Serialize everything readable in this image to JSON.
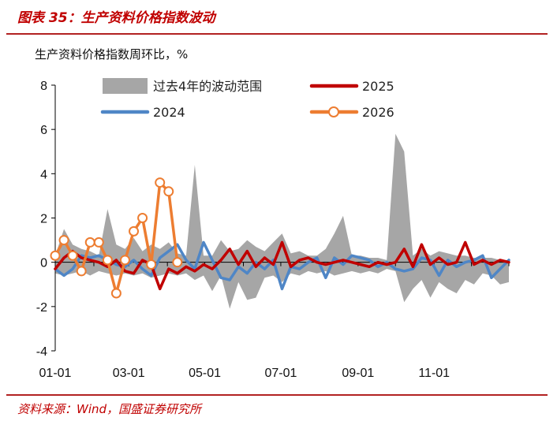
{
  "header": {
    "figure_title": "图表 35：生产资料价格指数波动",
    "subtitle": "生产资料价格指数周环比，%",
    "source": "资料来源：Wind，国盛证券研究所"
  },
  "colors": {
    "range": "#a6a6a6",
    "s2025": "#c00000",
    "s2024": "#4f86c6",
    "s2026": "#ed7d31",
    "accent": "#b22222"
  },
  "chart_data": {
    "type": "line",
    "xlabel": "",
    "ylabel": "",
    "ylim": [
      -4,
      8
    ],
    "y_ticks": [
      -4,
      -2,
      0,
      2,
      4,
      6,
      8
    ],
    "xlim": [
      "01-01",
      "12-31"
    ],
    "x_ticks": [
      "01-01",
      "03-01",
      "05-01",
      "07-01",
      "09-01",
      "11-01"
    ],
    "legend_position": "top",
    "band": {
      "name": "过去4年的波动范围",
      "x": [
        "01-01",
        "01-08",
        "01-15",
        "01-22",
        "01-29",
        "02-05",
        "02-12",
        "02-19",
        "02-26",
        "03-05",
        "03-12",
        "03-19",
        "03-26",
        "04-02",
        "04-09",
        "04-16",
        "04-23",
        "04-30",
        "05-07",
        "05-14",
        "05-21",
        "05-28",
        "06-04",
        "06-11",
        "06-18",
        "06-25",
        "07-02",
        "07-09",
        "07-16",
        "07-23",
        "07-30",
        "08-06",
        "08-13",
        "08-20",
        "08-27",
        "09-03",
        "09-10",
        "09-17",
        "09-24",
        "10-01",
        "10-08",
        "10-15",
        "10-22",
        "10-29",
        "11-05",
        "11-12",
        "11-19",
        "11-26",
        "12-03",
        "12-10",
        "12-17",
        "12-24",
        "12-31"
      ],
      "upper": [
        0.3,
        1.5,
        0.8,
        0.6,
        0.5,
        0.3,
        2.4,
        0.8,
        0.6,
        1.1,
        0.5,
        0.8,
        0.6,
        0.9,
        0.4,
        0.3,
        4.4,
        0.3,
        0.3,
        1.0,
        0.5,
        0.6,
        1.0,
        0.7,
        0.5,
        0.9,
        1.3,
        0.4,
        0.5,
        0.3,
        0.3,
        0.6,
        1.3,
        2.1,
        0.3,
        0.3,
        0.2,
        0.2,
        0.1,
        5.8,
        5.0,
        0.3,
        0.6,
        0.3,
        0.5,
        0.4,
        0.3,
        0.3,
        0.2,
        0.2,
        0.2,
        0.1,
        0.1
      ],
      "lower": [
        -0.5,
        -0.6,
        -0.5,
        -0.4,
        -0.6,
        -0.4,
        -0.5,
        -0.6,
        -0.5,
        -0.6,
        -0.5,
        -0.7,
        -0.6,
        -0.5,
        -0.6,
        -0.5,
        -0.8,
        -0.6,
        -1.3,
        -0.6,
        -2.1,
        -0.9,
        -1.7,
        -1.6,
        -0.7,
        -0.6,
        -0.9,
        -0.5,
        -0.6,
        -0.4,
        -0.5,
        -0.4,
        -0.6,
        -0.5,
        -0.4,
        -0.5,
        -0.4,
        -0.5,
        -0.3,
        -0.4,
        -1.8,
        -1.2,
        -0.8,
        -1.6,
        -0.9,
        -1.2,
        -1.4,
        -0.8,
        -1.0,
        -0.5,
        -0.6,
        -1.0,
        -0.9
      ]
    },
    "series": [
      {
        "name": "2025",
        "x": [
          "01-01",
          "01-08",
          "01-15",
          "01-22",
          "01-29",
          "02-05",
          "02-12",
          "02-19",
          "02-26",
          "03-05",
          "03-12",
          "03-19",
          "03-26",
          "04-02",
          "04-09",
          "04-16",
          "04-23",
          "04-30",
          "05-07",
          "05-14",
          "05-21",
          "05-28",
          "06-04",
          "06-11",
          "06-18",
          "06-25",
          "07-02",
          "07-09",
          "07-16",
          "07-23",
          "07-30",
          "08-06",
          "08-13",
          "08-20",
          "08-27",
          "09-03",
          "09-10",
          "09-17",
          "09-24",
          "10-01",
          "10-08",
          "10-15",
          "10-22",
          "10-29",
          "11-05",
          "11-12",
          "11-19",
          "11-26",
          "12-03",
          "12-10",
          "12-17",
          "12-24",
          "12-31"
        ],
        "values": [
          -0.3,
          0.2,
          0.5,
          0.2,
          0.1,
          0.0,
          -0.2,
          0.1,
          -0.4,
          -0.5,
          0.1,
          -0.1,
          -1.2,
          -0.3,
          -0.5,
          -0.2,
          -0.4,
          -0.1,
          -0.3,
          0.1,
          0.6,
          -0.1,
          0.5,
          -0.2,
          0.2,
          -0.1,
          0.9,
          -0.2,
          0.1,
          0.2,
          0.0,
          -0.1,
          0.0,
          0.1,
          0.0,
          -0.1,
          -0.2,
          0.0,
          -0.1,
          0.0,
          0.6,
          -0.2,
          0.8,
          -0.1,
          0.2,
          -0.1,
          0.0,
          0.9,
          -0.1,
          0.1,
          -0.1,
          0.1,
          0.0
        ],
        "marker": "none"
      },
      {
        "name": "2024",
        "x": [
          "01-01",
          "01-08",
          "01-15",
          "01-22",
          "01-29",
          "02-05",
          "02-12",
          "02-19",
          "02-26",
          "03-05",
          "03-12",
          "03-19",
          "03-26",
          "04-02",
          "04-09",
          "04-16",
          "04-23",
          "04-30",
          "05-07",
          "05-14",
          "05-21",
          "05-28",
          "06-04",
          "06-11",
          "06-18",
          "06-25",
          "07-02",
          "07-09",
          "07-16",
          "07-23",
          "07-30",
          "08-06",
          "08-13",
          "08-20",
          "08-27",
          "09-03",
          "09-10",
          "09-17",
          "09-24",
          "10-01",
          "10-08",
          "10-15",
          "10-22",
          "10-29",
          "11-05",
          "11-12",
          "11-19",
          "11-26",
          "12-03",
          "12-10",
          "12-17",
          "12-24",
          "12-31"
        ],
        "values": [
          -0.3,
          -0.6,
          -0.3,
          0.3,
          0.2,
          0.3,
          0.1,
          -0.1,
          -0.2,
          0.1,
          -0.3,
          -0.6,
          0.2,
          0.5,
          0.8,
          0.1,
          -0.3,
          0.9,
          0.1,
          -0.7,
          -0.8,
          -0.2,
          -0.5,
          0.0,
          -0.3,
          0.1,
          -1.2,
          -0.2,
          -0.3,
          0.0,
          0.2,
          -0.7,
          0.2,
          -0.1,
          0.3,
          0.2,
          0.1,
          -0.2,
          0.0,
          -0.3,
          -0.4,
          -0.3,
          0.2,
          0.1,
          -0.6,
          0.1,
          -0.2,
          0.0,
          0.1,
          0.3,
          -0.7,
          -0.3,
          0.1
        ],
        "marker": "none"
      },
      {
        "name": "2026",
        "x": [
          "01-01",
          "01-08",
          "01-15",
          "01-22",
          "01-29",
          "02-05",
          "02-12",
          "02-19",
          "02-26",
          "03-05",
          "03-12",
          "03-19",
          "03-26",
          "04-02",
          "04-09"
        ],
        "values": [
          0.3,
          1.0,
          0.3,
          -0.4,
          0.9,
          0.9,
          0.1,
          -1.4,
          0.1,
          1.4,
          2.0,
          -0.1,
          3.6,
          3.2,
          0.0
        ],
        "marker": "hollow-circle"
      }
    ]
  }
}
